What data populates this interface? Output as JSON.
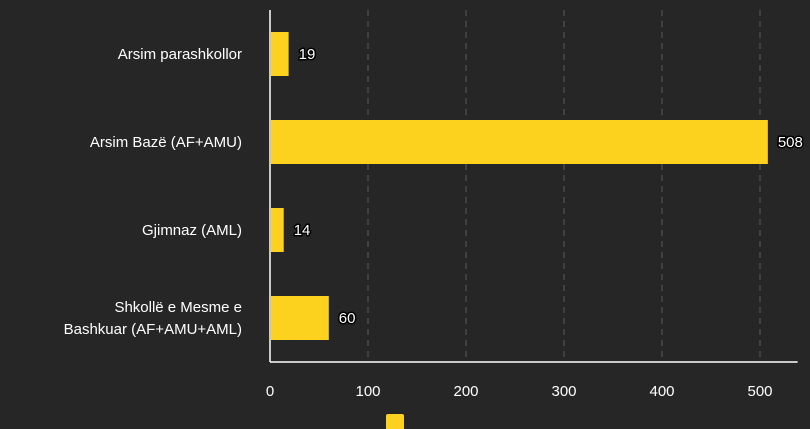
{
  "chart_data": {
    "type": "bar",
    "orientation": "horizontal",
    "categories": [
      [
        "Arsim parashkollor"
      ],
      [
        "Arsim Bazë (AF+AMU)"
      ],
      [
        "Gjimnaz (AML)"
      ],
      [
        "Shkollë e Mesme e",
        "Bashkuar (AF+AMU+AML)"
      ]
    ],
    "series": [
      {
        "name": "",
        "values": [
          19,
          508,
          14,
          60
        ],
        "color": "#fdd21f"
      }
    ],
    "xlim": [
      0,
      520
    ],
    "xticks": [
      0,
      100,
      200,
      300,
      400,
      500
    ],
    "grid": true,
    "legend_position": "bottom"
  },
  "colors": {
    "background": "#262626",
    "bar": "#fdd21f",
    "axis": "#ffffff",
    "grid": "#5a5a5a"
  }
}
